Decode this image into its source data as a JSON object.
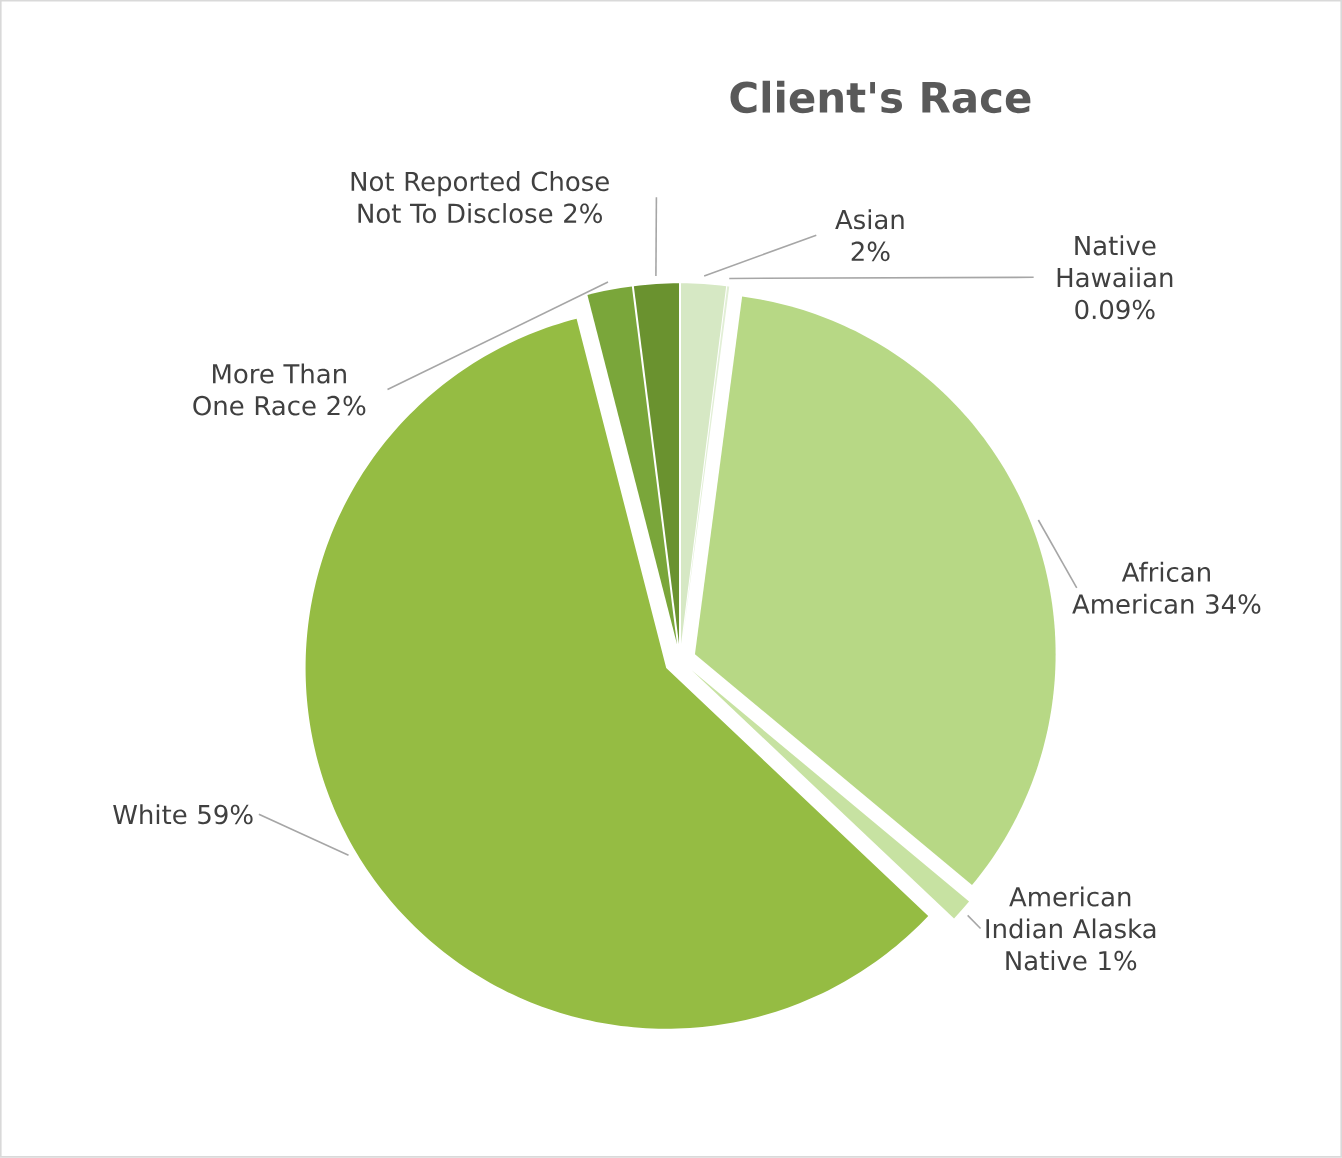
{
  "chart_data": {
    "type": "pie",
    "title": "Client's Race",
    "categories": [
      "Asian",
      "Native Hawaiian",
      "African American",
      "American Indian Alaska Native",
      "White",
      "More Than One Race",
      "Not Reported Chose Not To Disclose"
    ],
    "values": [
      2,
      0.09,
      34,
      1,
      59,
      2,
      2
    ],
    "value_labels": [
      "2%",
      "0.09%",
      "34%",
      "1%",
      "59%",
      "2%",
      "2%"
    ],
    "colors": [
      "#d6e8c4",
      "#e2efd6",
      "#b7d885",
      "#c7e2a2",
      "#95bc43",
      "#7aa63a",
      "#6a922f"
    ]
  }
}
